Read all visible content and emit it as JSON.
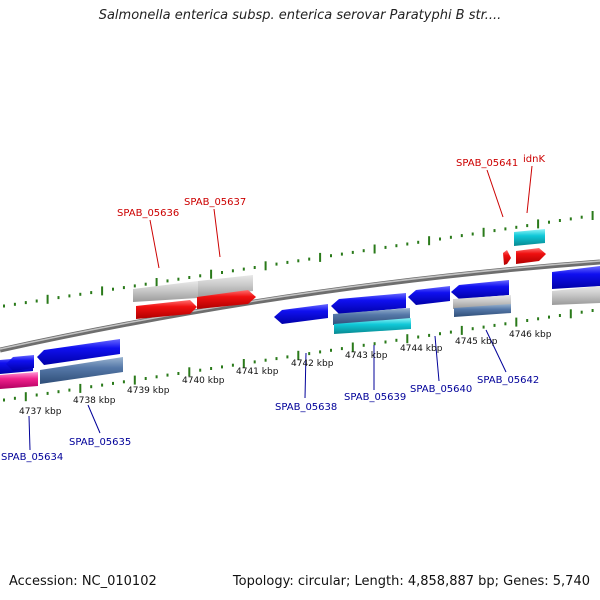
{
  "title": "Salmonella enterica subsp. enterica serovar Paratyphi B str....",
  "footer": {
    "accession": "Accession: NC_010102",
    "info": "Topology: circular; Length: 4,858,887 bp; Genes: 5,740"
  },
  "kbp_labels": [
    "4737 kbp",
    "4738 kbp",
    "4739 kbp",
    "4740 kbp",
    "4741 kbp",
    "4742 kbp",
    "4743 kbp",
    "4744 kbp",
    "4745 kbp",
    "4746 kbp"
  ],
  "forward_labels": [
    "SPAB_05636",
    "SPAB_05637",
    "SPAB_05641",
    "idnK"
  ],
  "reverse_labels": [
    "SPAB_05634",
    "SPAB_05635",
    "SPAB_05638",
    "SPAB_05639",
    "SPAB_05640",
    "SPAB_05642"
  ],
  "colors": {
    "forward_label": "#cc0000",
    "reverse_label": "#000099",
    "tick": "#2a7a1a",
    "backbone": "#8c8c8c"
  }
}
